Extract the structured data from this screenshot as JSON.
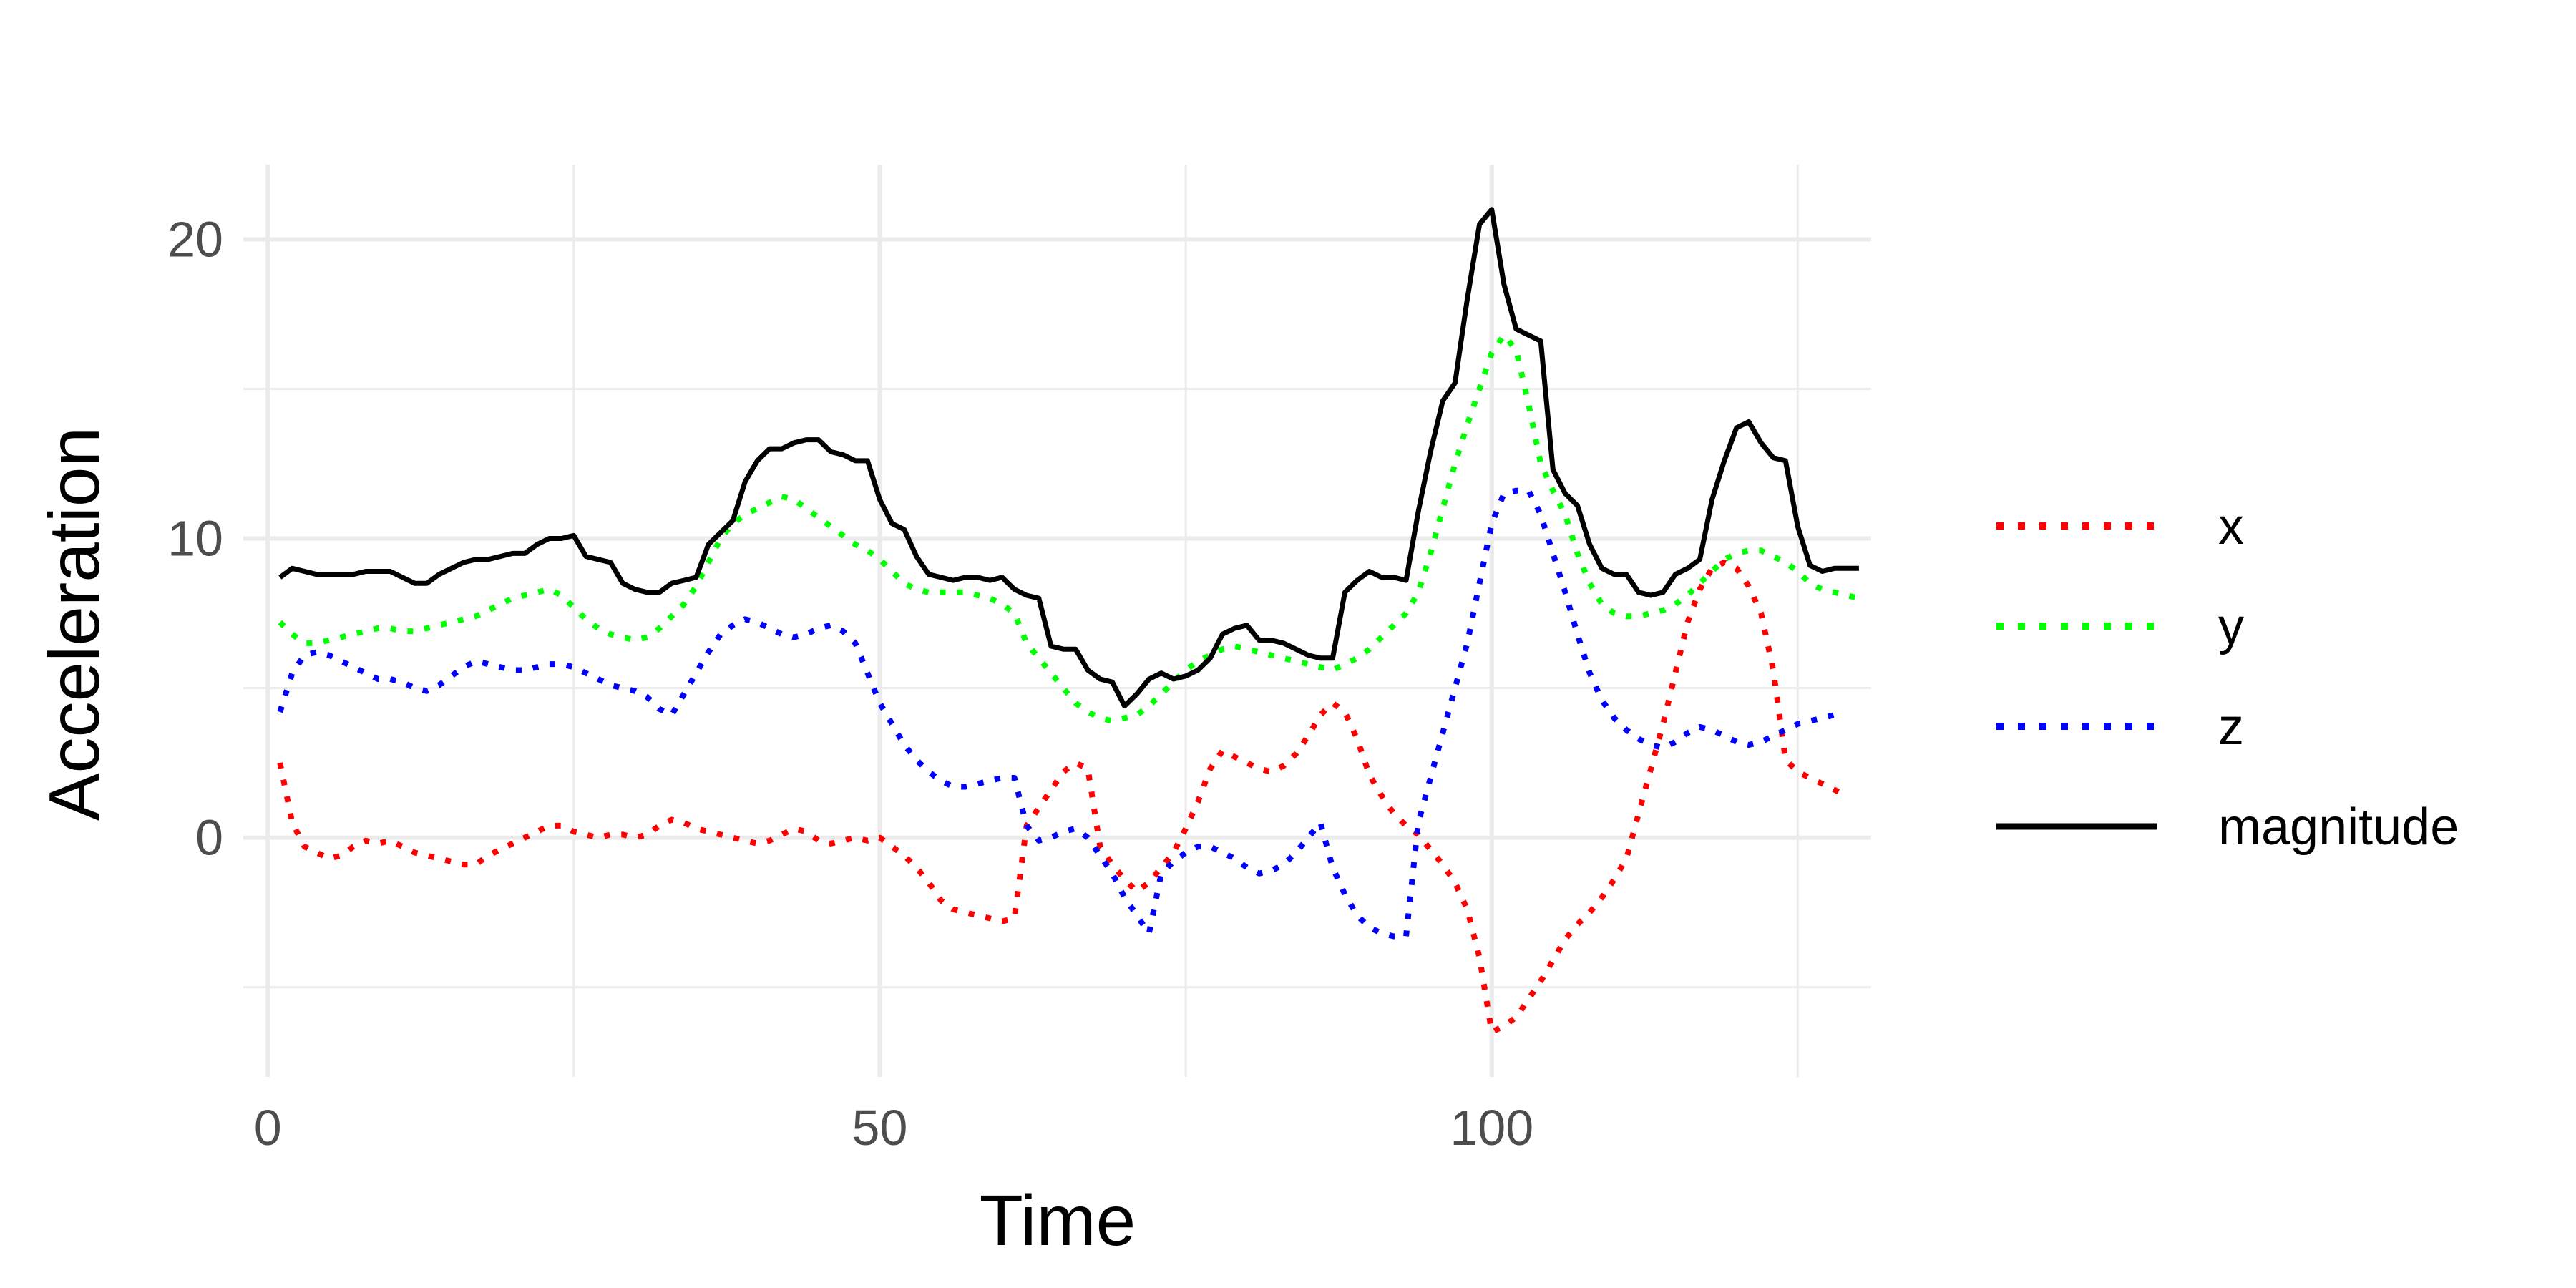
{
  "chart_data": {
    "type": "line",
    "title": "",
    "xlabel": "Time",
    "ylabel": "Acceleration",
    "xlim": [
      -2,
      131
    ],
    "ylim": [
      -8,
      22.5
    ],
    "xticks": [
      0,
      50,
      100
    ],
    "yticks": [
      0,
      10,
      20
    ],
    "grid": true,
    "legend_position": "right",
    "x_start": 1,
    "series": [
      {
        "name": "x",
        "color": "#ff0000",
        "style": "dotted",
        "values": [
          2.5,
          0.5,
          -0.3,
          -0.5,
          -0.7,
          -0.6,
          -0.3,
          -0.1,
          -0.2,
          -0.1,
          -0.3,
          -0.5,
          -0.6,
          -0.7,
          -0.8,
          -0.9,
          -0.9,
          -0.6,
          -0.4,
          -0.2,
          0.0,
          0.2,
          0.4,
          0.4,
          0.2,
          0.1,
          0.0,
          0.1,
          0.1,
          0.0,
          0.1,
          0.4,
          0.6,
          0.5,
          0.3,
          0.2,
          0.1,
          0.0,
          -0.1,
          -0.2,
          -0.1,
          0.1,
          0.3,
          0.2,
          -0.1,
          -0.2,
          -0.1,
          0.0,
          -0.1,
          0.0,
          -0.3,
          -0.6,
          -1.0,
          -1.5,
          -2.1,
          -2.4,
          -2.5,
          -2.6,
          -2.7,
          -2.8,
          -2.7,
          0.4,
          1.0,
          1.6,
          2.2,
          2.5,
          2.3,
          -0.3,
          -0.9,
          -1.4,
          -1.8,
          -1.5,
          -1.0,
          -0.5,
          0.3,
          1.2,
          2.3,
          2.9,
          2.7,
          2.5,
          2.3,
          2.2,
          2.4,
          2.8,
          3.4,
          4.1,
          4.5,
          4.2,
          3.3,
          2.1,
          1.4,
          0.8,
          0.4,
          0.1,
          -0.4,
          -0.9,
          -1.5,
          -2.4,
          -4.0,
          -6.5,
          -6.3,
          -6.0,
          -5.4,
          -4.8,
          -4.1,
          -3.4,
          -2.9,
          -2.5,
          -2.0,
          -1.4,
          -0.7,
          0.8,
          2.3,
          3.8,
          5.5,
          7.2,
          8.3,
          9.0,
          9.2,
          9.0,
          8.4,
          7.5,
          5.6,
          2.6,
          2.2,
          2.0,
          1.8,
          1.6,
          1.4
        ]
      },
      {
        "name": "y",
        "color": "#00ff00",
        "style": "dotted",
        "values": [
          7.2,
          6.8,
          6.5,
          6.5,
          6.6,
          6.7,
          6.8,
          6.9,
          7.0,
          7.0,
          6.9,
          6.9,
          7.0,
          7.1,
          7.2,
          7.3,
          7.4,
          7.6,
          7.8,
          8.0,
          8.1,
          8.2,
          8.3,
          8.1,
          7.7,
          7.3,
          7.0,
          6.8,
          6.7,
          6.6,
          6.7,
          7.0,
          7.4,
          7.8,
          8.4,
          9.2,
          10.0,
          10.5,
          10.8,
          11.0,
          11.2,
          11.4,
          11.3,
          11.0,
          10.7,
          10.4,
          10.1,
          9.8,
          9.6,
          9.3,
          8.9,
          8.5,
          8.3,
          8.2,
          8.2,
          8.2,
          8.2,
          8.1,
          8.0,
          7.8,
          7.5,
          6.5,
          6.0,
          5.5,
          5.0,
          4.5,
          4.2,
          4.0,
          3.9,
          4.0,
          4.1,
          4.4,
          4.8,
          5.2,
          5.6,
          5.9,
          6.1,
          6.3,
          6.4,
          6.3,
          6.2,
          6.1,
          6.0,
          5.9,
          5.8,
          5.7,
          5.6,
          5.8,
          6.0,
          6.3,
          6.7,
          7.1,
          7.5,
          8.2,
          9.5,
          11.0,
          12.5,
          13.8,
          15.0,
          16.2,
          16.8,
          16.3,
          14.5,
          12.5,
          11.6,
          10.8,
          9.5,
          8.5,
          7.8,
          7.5,
          7.4,
          7.4,
          7.5,
          7.6,
          7.8,
          8.1,
          8.5,
          8.9,
          9.3,
          9.5,
          9.6,
          9.6,
          9.4,
          9.2,
          8.9,
          8.5,
          8.3,
          8.2,
          8.1,
          8.0
        ]
      },
      {
        "name": "z",
        "color": "#0000ff",
        "style": "dotted",
        "values": [
          4.2,
          5.5,
          6.1,
          6.2,
          6.1,
          5.9,
          5.7,
          5.5,
          5.3,
          5.3,
          5.2,
          5.0,
          4.9,
          5.1,
          5.4,
          5.7,
          5.9,
          5.8,
          5.7,
          5.6,
          5.6,
          5.7,
          5.8,
          5.8,
          5.7,
          5.5,
          5.3,
          5.1,
          5.0,
          4.9,
          4.7,
          4.3,
          4.1,
          4.8,
          5.5,
          6.2,
          6.8,
          7.1,
          7.3,
          7.2,
          7.0,
          6.8,
          6.7,
          6.8,
          7.0,
          7.1,
          6.9,
          6.5,
          5.5,
          4.5,
          3.8,
          3.1,
          2.6,
          2.2,
          1.9,
          1.7,
          1.7,
          1.8,
          1.9,
          2.0,
          2.0,
          0.4,
          -0.1,
          0.0,
          0.2,
          0.3,
          0.0,
          -0.6,
          -1.2,
          -2.0,
          -2.6,
          -3.2,
          -1.2,
          -0.8,
          -0.5,
          -0.3,
          -0.3,
          -0.5,
          -0.7,
          -1.0,
          -1.2,
          -1.1,
          -0.9,
          -0.5,
          0.0,
          0.5,
          -1.0,
          -1.9,
          -2.6,
          -3.0,
          -3.2,
          -3.3,
          -3.3,
          0.5,
          2.0,
          3.5,
          5.0,
          6.5,
          8.5,
          10.5,
          11.5,
          11.6,
          11.6,
          10.8,
          9.5,
          8.2,
          6.8,
          5.5,
          4.6,
          4.0,
          3.6,
          3.3,
          3.1,
          3.0,
          3.2,
          3.5,
          3.7,
          3.6,
          3.4,
          3.2,
          3.1,
          3.2,
          3.4,
          3.6,
          3.8,
          3.9,
          4.0,
          4.1
        ]
      },
      {
        "name": "magnitude",
        "color": "#000000",
        "style": "solid",
        "values": [
          8.7,
          9.0,
          8.9,
          8.8,
          8.8,
          8.8,
          8.8,
          8.9,
          8.9,
          8.9,
          8.7,
          8.5,
          8.5,
          8.8,
          9.0,
          9.2,
          9.3,
          9.3,
          9.4,
          9.5,
          9.5,
          9.8,
          10.0,
          10.0,
          10.1,
          9.4,
          9.3,
          9.2,
          8.5,
          8.3,
          8.2,
          8.2,
          8.5,
          8.6,
          8.7,
          9.8,
          10.2,
          10.6,
          11.9,
          12.6,
          13.0,
          13.0,
          13.2,
          13.3,
          13.3,
          12.9,
          12.8,
          12.6,
          12.6,
          11.3,
          10.5,
          10.3,
          9.4,
          8.8,
          8.7,
          8.6,
          8.7,
          8.7,
          8.6,
          8.7,
          8.3,
          8.1,
          8.0,
          6.4,
          6.3,
          6.3,
          5.6,
          5.3,
          5.2,
          4.4,
          4.8,
          5.3,
          5.5,
          5.3,
          5.4,
          5.6,
          6.0,
          6.8,
          7.0,
          7.1,
          6.6,
          6.6,
          6.5,
          6.3,
          6.1,
          6.0,
          6.0,
          8.2,
          8.6,
          8.9,
          8.7,
          8.7,
          8.6,
          10.9,
          12.9,
          14.6,
          15.2,
          18.0,
          20.5,
          21.0,
          18.5,
          17.0,
          16.8,
          16.6,
          12.3,
          11.5,
          11.1,
          9.8,
          9.0,
          8.8,
          8.8,
          8.2,
          8.1,
          8.2,
          8.8,
          9.0,
          9.3,
          11.3,
          12.6,
          13.7,
          13.9,
          13.2,
          12.7,
          12.6,
          10.4,
          9.1,
          8.9,
          9.0,
          9.0,
          9.0
        ]
      }
    ]
  }
}
